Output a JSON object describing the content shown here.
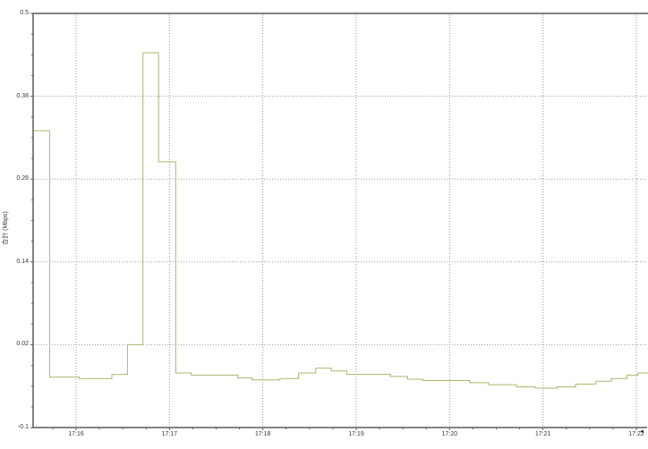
{
  "chart": {
    "y_axis_title": "合計 (Mbps)",
    "cursor_glyph": "◄",
    "colors": {
      "line": "#b1b36c",
      "grid": "#9a9a9a",
      "axis": "#5a5a5a",
      "label": "#3a3a3a",
      "background": "#ffffff"
    }
  },
  "chart_data": {
    "type": "line",
    "subtype": "step-after",
    "title": "",
    "xlabel": "",
    "ylabel": "合計 (Mbps)",
    "ylim": [
      -0.1,
      0.5
    ],
    "x_range": [
      "17:15:33",
      "17:22:08"
    ],
    "grid": true,
    "legend": false,
    "y_ticks": {
      "labels": [
        "0.5",
        "0.38",
        "0.26",
        "0.14",
        "0.02",
        "-0.1"
      ],
      "values": [
        0.5,
        0.38,
        0.26,
        0.14,
        0.02,
        -0.1
      ]
    },
    "x_ticks": {
      "labels": [
        "17:16",
        "17:17",
        "17:18",
        "17:19",
        "17:20",
        "17:21",
        "17:22"
      ],
      "minutes": [
        1,
        2,
        3,
        4,
        5,
        6,
        7
      ]
    },
    "series": [
      {
        "name": "合計",
        "color": "#b1b36c",
        "points": [
          {
            "t": "17:15:33",
            "v": 0.33
          },
          {
            "t": "17:15:43",
            "v": -0.027
          },
          {
            "t": "17:16:02",
            "v": -0.029
          },
          {
            "t": "17:16:23",
            "v": -0.023
          },
          {
            "t": "17:16:33",
            "v": 0.02
          },
          {
            "t": "17:16:43",
            "v": 0.443
          },
          {
            "t": "17:16:53",
            "v": 0.285
          },
          {
            "t": "17:17:04",
            "v": -0.021
          },
          {
            "t": "17:17:14",
            "v": -0.024
          },
          {
            "t": "17:17:44",
            "v": -0.028
          },
          {
            "t": "17:17:53",
            "v": -0.031
          },
          {
            "t": "17:18:11",
            "v": -0.029
          },
          {
            "t": "17:18:23",
            "v": -0.021
          },
          {
            "t": "17:18:34",
            "v": -0.014
          },
          {
            "t": "17:18:44",
            "v": -0.018
          },
          {
            "t": "17:18:54",
            "v": -0.023
          },
          {
            "t": "17:19:22",
            "v": -0.026
          },
          {
            "t": "17:19:33",
            "v": -0.03
          },
          {
            "t": "17:19:43",
            "v": -0.032
          },
          {
            "t": "17:20:13",
            "v": -0.035
          },
          {
            "t": "17:20:25",
            "v": -0.038
          },
          {
            "t": "17:20:43",
            "v": -0.041
          },
          {
            "t": "17:20:55",
            "v": -0.043
          },
          {
            "t": "17:21:09",
            "v": -0.041
          },
          {
            "t": "17:21:21",
            "v": -0.037
          },
          {
            "t": "17:21:34",
            "v": -0.033
          },
          {
            "t": "17:21:44",
            "v": -0.029
          },
          {
            "t": "17:21:54",
            "v": -0.024
          },
          {
            "t": "17:22:01",
            "v": -0.021
          }
        ]
      }
    ]
  }
}
